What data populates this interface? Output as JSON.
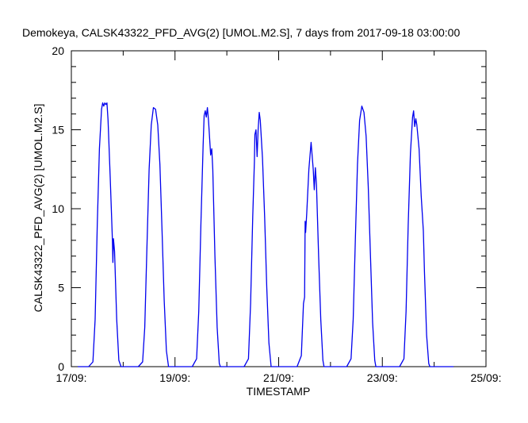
{
  "chart_data": {
    "type": "line",
    "title": "Demokeya, CALSK43322_PFD_AVG(2) [UMOL.M2.S], 7 days from  2017-09-18 03:00:00",
    "xlabel": "TIMESTAMP",
    "ylabel": "CALSK43322_PFD_AVG(2) [UMOL.M2.S]",
    "xlim": [
      "2017-09-17 00:00",
      "2017-09-25 00:00"
    ],
    "ylim": [
      0,
      20
    ],
    "x_tick_labels": [
      "17/09:",
      "19/09:",
      "21/09:",
      "23/09:",
      "25/09:"
    ],
    "y_tick_labels": [
      "0",
      "5",
      "10",
      "15",
      "20"
    ],
    "x_tick_values": [
      "2017-09-17 00:00",
      "2017-09-19 00:00",
      "2017-09-21 00:00",
      "2017-09-23 00:00",
      "2017-09-25 00:00"
    ],
    "y_tick_values": [
      0,
      5,
      10,
      15,
      20
    ],
    "grid": false,
    "line_color": "#0000ee",
    "series": [
      {
        "values": [
          [
            "2017-09-17 03:00",
            0
          ],
          [
            "2017-09-17 08:00",
            0
          ],
          [
            "2017-09-17 10:00",
            0.3
          ],
          [
            "2017-09-17 11:00",
            3.0
          ],
          [
            "2017-09-17 12:00",
            9.0
          ],
          [
            "2017-09-17 13:00",
            13.8
          ],
          [
            "2017-09-17 14:00",
            16.3
          ],
          [
            "2017-09-17 14:30",
            16.7
          ],
          [
            "2017-09-17 15:00",
            16.5
          ],
          [
            "2017-09-17 15:30",
            16.7
          ],
          [
            "2017-09-17 16:00",
            16.6
          ],
          [
            "2017-09-17 16:30",
            16.7
          ],
          [
            "2017-09-17 17:00",
            15.6
          ],
          [
            "2017-09-17 18:00",
            12.0
          ],
          [
            "2017-09-17 19:00",
            8.0
          ],
          [
            "2017-09-17 19:15",
            6.6
          ],
          [
            "2017-09-17 19:30",
            8.1
          ],
          [
            "2017-09-17 20:00",
            7.3
          ],
          [
            "2017-09-17 21:00",
            3.0
          ],
          [
            "2017-09-17 22:00",
            0.4
          ],
          [
            "2017-09-17 23:00",
            0
          ],
          [
            "2017-09-18 07:00",
            0
          ],
          [
            "2017-09-18 09:00",
            0.3
          ],
          [
            "2017-09-18 10:00",
            2.5
          ],
          [
            "2017-09-18 11:00",
            7.5
          ],
          [
            "2017-09-18 12:00",
            12.5
          ],
          [
            "2017-09-18 13:00",
            15.3
          ],
          [
            "2017-09-18 14:00",
            16.4
          ],
          [
            "2017-09-18 15:00",
            16.3
          ],
          [
            "2017-09-18 16:00",
            15.3
          ],
          [
            "2017-09-18 17:00",
            12.8
          ],
          [
            "2017-09-18 18:00",
            8.6
          ],
          [
            "2017-09-18 19:00",
            4.2
          ],
          [
            "2017-09-18 20:00",
            1.0
          ],
          [
            "2017-09-18 21:00",
            0
          ],
          [
            "2017-09-19 08:00",
            0
          ],
          [
            "2017-09-19 10:00",
            0.5
          ],
          [
            "2017-09-19 11:00",
            3.5
          ],
          [
            "2017-09-19 12:00",
            9.0
          ],
          [
            "2017-09-19 13:00",
            14.0
          ],
          [
            "2017-09-19 13:30",
            15.9
          ],
          [
            "2017-09-19 14:00",
            16.2
          ],
          [
            "2017-09-19 14:30",
            15.8
          ],
          [
            "2017-09-19 15:00",
            16.4
          ],
          [
            "2017-09-19 15:30",
            15.6
          ],
          [
            "2017-09-19 16:30",
            13.4
          ],
          [
            "2017-09-19 17:00",
            13.8
          ],
          [
            "2017-09-19 17:30",
            12.5
          ],
          [
            "2017-09-19 18:30",
            7.0
          ],
          [
            "2017-09-19 19:30",
            2.5
          ],
          [
            "2017-09-19 20:30",
            0.2
          ],
          [
            "2017-09-19 21:00",
            0
          ],
          [
            "2017-09-20 08:00",
            0
          ],
          [
            "2017-09-20 10:00",
            0.5
          ],
          [
            "2017-09-20 11:00",
            4.0
          ],
          [
            "2017-09-20 12:00",
            9.5
          ],
          [
            "2017-09-20 12:45",
            13.0
          ],
          [
            "2017-09-20 13:00",
            14.7
          ],
          [
            "2017-09-20 13:30",
            15.0
          ],
          [
            "2017-09-20 14:00",
            13.3
          ],
          [
            "2017-09-20 14:30",
            15.0
          ],
          [
            "2017-09-20 15:00",
            16.1
          ],
          [
            "2017-09-20 15:30",
            15.6
          ],
          [
            "2017-09-20 16:30",
            13.2
          ],
          [
            "2017-09-20 17:30",
            9.5
          ],
          [
            "2017-09-20 18:30",
            5.0
          ],
          [
            "2017-09-20 19:30",
            1.5
          ],
          [
            "2017-09-20 20:30",
            0
          ],
          [
            "2017-09-21 08:30",
            0
          ],
          [
            "2017-09-21 10:30",
            0.7
          ],
          [
            "2017-09-21 11:30",
            4.0
          ],
          [
            "2017-09-21 12:00",
            4.4
          ],
          [
            "2017-09-21 12:15",
            9.2
          ],
          [
            "2017-09-21 12:30",
            8.5
          ],
          [
            "2017-09-21 13:00",
            9.7
          ],
          [
            "2017-09-21 14:00",
            12.5
          ],
          [
            "2017-09-21 15:00",
            14.2
          ],
          [
            "2017-09-21 16:00",
            12.5
          ],
          [
            "2017-09-21 16:30",
            11.2
          ],
          [
            "2017-09-21 17:00",
            12.6
          ],
          [
            "2017-09-21 17:30",
            11.5
          ],
          [
            "2017-09-21 18:30",
            7.0
          ],
          [
            "2017-09-21 19:30",
            3.0
          ],
          [
            "2017-09-21 20:30",
            0.4
          ],
          [
            "2017-09-21 21:00",
            0
          ],
          [
            "2017-09-22 07:30",
            0
          ],
          [
            "2017-09-22 09:30",
            0.5
          ],
          [
            "2017-09-22 10:30",
            3.0
          ],
          [
            "2017-09-22 11:30",
            8.0
          ],
          [
            "2017-09-22 12:30",
            12.8
          ],
          [
            "2017-09-22 13:30",
            15.6
          ],
          [
            "2017-09-22 14:30",
            16.5
          ],
          [
            "2017-09-22 15:30",
            16.1
          ],
          [
            "2017-09-22 16:30",
            14.6
          ],
          [
            "2017-09-22 17:30",
            11.4
          ],
          [
            "2017-09-22 18:30",
            7.0
          ],
          [
            "2017-09-22 19:30",
            2.8
          ],
          [
            "2017-09-22 20:30",
            0.4
          ],
          [
            "2017-09-22 21:00",
            0
          ],
          [
            "2017-09-23 08:00",
            0
          ],
          [
            "2017-09-23 10:00",
            0.5
          ],
          [
            "2017-09-23 11:00",
            3.5
          ],
          [
            "2017-09-23 12:00",
            9.0
          ],
          [
            "2017-09-23 13:00",
            13.5
          ],
          [
            "2017-09-23 14:00",
            15.8
          ],
          [
            "2017-09-23 14:30",
            16.2
          ],
          [
            "2017-09-23 15:00",
            15.2
          ],
          [
            "2017-09-23 15:30",
            15.7
          ],
          [
            "2017-09-23 16:00",
            15.3
          ],
          [
            "2017-09-23 17:00",
            13.8
          ],
          [
            "2017-09-23 18:00",
            10.8
          ],
          [
            "2017-09-23 19:00",
            8.6
          ],
          [
            "2017-09-23 19:30",
            6.0
          ],
          [
            "2017-09-23 20:30",
            2.0
          ],
          [
            "2017-09-23 21:30",
            0.2
          ],
          [
            "2017-09-23 22:00",
            0
          ],
          [
            "2017-09-24 09:00",
            0
          ]
        ]
      }
    ]
  }
}
